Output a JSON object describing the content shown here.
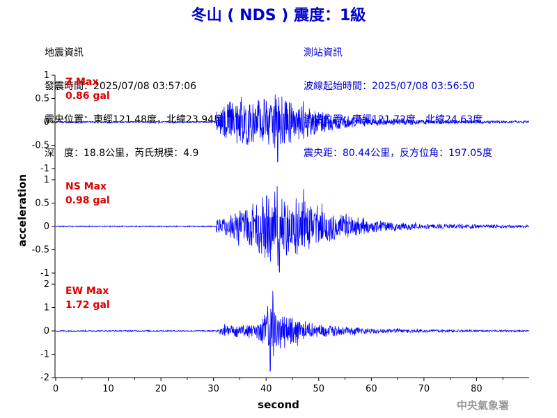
{
  "title": "冬山 ( NDS ) 震度：1級",
  "quake_info": {
    "heading": "地震資訊",
    "origin_time": "發震時間：2025/07/08 03:57:06",
    "epicenter": "震央位置：東經121.48度，北緯23.94度",
    "depth_magnitude": "深　度：18.8公里，芮氏規模：4.9"
  },
  "station_info": {
    "heading": "測站資訊",
    "wave_start": "波線起始時間：2025/07/08 03:56:50",
    "location": "測站位置：東經121.72度，北緯24.63度",
    "distance_azimuth": "震央距：80.44公里，反方位角：197.05度"
  },
  "watermark": "中央氣象署",
  "chart_data": {
    "type": "line",
    "xlabel": "second",
    "ylabel": "acceleration",
    "xlim": [
      0,
      90
    ],
    "xticks": [
      0,
      10,
      20,
      30,
      40,
      50,
      60,
      70,
      80
    ],
    "line_color": "#0000ff",
    "label_color": "#dd0000",
    "arrival_time_s": 30.5,
    "panels": [
      {
        "name": "Z",
        "max_label": "Z Max",
        "max_value": "0.86 gal",
        "ylim": [
          -1,
          1
        ],
        "yticks": [
          1,
          0.5,
          0,
          -0.5,
          -1
        ],
        "peak": 0.86,
        "peak_time_s": 42.2,
        "envelope": [
          [
            30.5,
            0.2
          ],
          [
            32,
            0.35
          ],
          [
            34,
            0.45
          ],
          [
            36,
            0.55
          ],
          [
            38,
            0.45
          ],
          [
            40,
            0.45
          ],
          [
            42,
            0.6
          ],
          [
            44,
            0.45
          ],
          [
            46,
            0.38
          ],
          [
            48,
            0.3
          ],
          [
            50,
            0.22
          ],
          [
            55,
            0.13
          ],
          [
            60,
            0.08
          ],
          [
            70,
            0.045
          ],
          [
            80,
            0.03
          ],
          [
            90,
            0.02
          ]
        ]
      },
      {
        "name": "NS",
        "max_label": "NS Max",
        "max_value": "0.98 gal",
        "ylim": [
          -1,
          1
        ],
        "yticks": [
          1,
          0.5,
          0,
          -0.5,
          -1
        ],
        "peak": 0.98,
        "peak_time_s": 42.5,
        "envelope": [
          [
            30.5,
            0.12
          ],
          [
            32,
            0.2
          ],
          [
            34,
            0.28
          ],
          [
            36,
            0.35
          ],
          [
            38,
            0.42
          ],
          [
            40,
            0.7
          ],
          [
            42,
            0.8
          ],
          [
            44,
            0.6
          ],
          [
            46,
            0.65
          ],
          [
            48,
            0.45
          ],
          [
            50,
            0.35
          ],
          [
            55,
            0.22
          ],
          [
            60,
            0.12
          ],
          [
            65,
            0.08
          ],
          [
            70,
            0.05
          ],
          [
            80,
            0.035
          ],
          [
            90,
            0.025
          ]
        ]
      },
      {
        "name": "EW",
        "max_label": "EW Max",
        "max_value": "1.72 gal",
        "ylim": [
          -2,
          2
        ],
        "yticks": [
          2,
          1,
          0,
          -1,
          -2
        ],
        "peak": 1.72,
        "peak_time_s": 40.8,
        "envelope": [
          [
            30.5,
            0.1
          ],
          [
            32,
            0.2
          ],
          [
            34,
            0.25
          ],
          [
            38,
            0.3
          ],
          [
            40,
            0.9
          ],
          [
            41,
            1.2
          ],
          [
            42,
            1.0
          ],
          [
            44,
            0.6
          ],
          [
            46,
            0.45
          ],
          [
            48,
            0.35
          ],
          [
            50,
            0.25
          ],
          [
            55,
            0.17
          ],
          [
            60,
            0.1
          ],
          [
            70,
            0.06
          ],
          [
            80,
            0.04
          ],
          [
            90,
            0.03
          ]
        ]
      }
    ]
  }
}
